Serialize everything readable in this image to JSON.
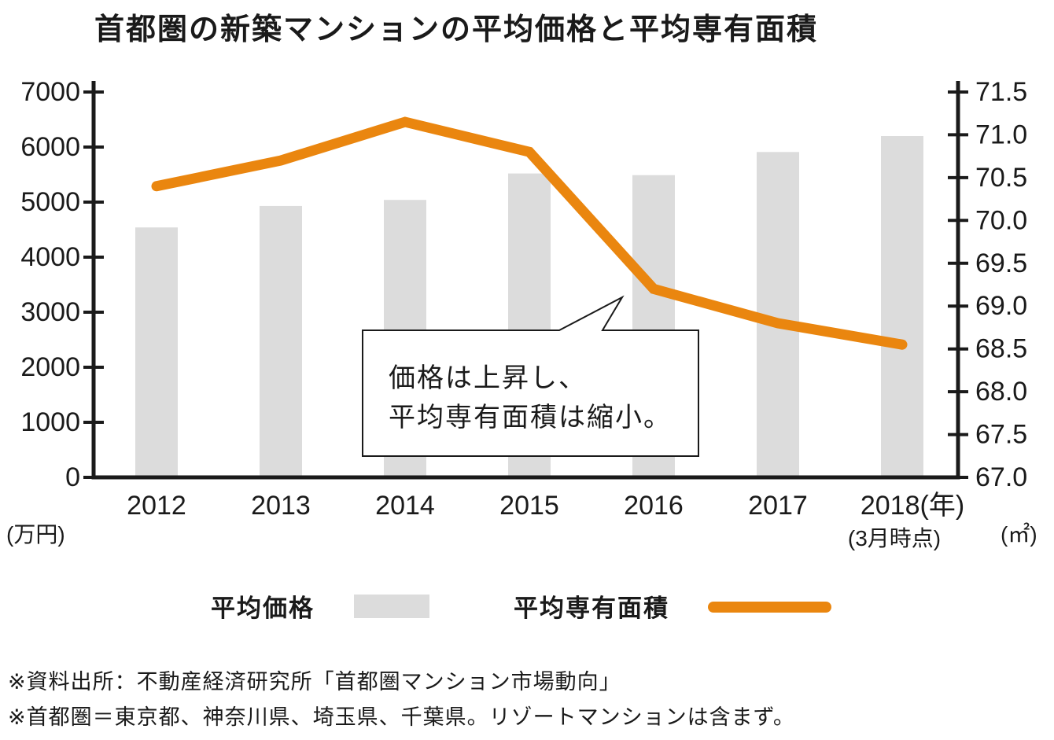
{
  "title": "首都圏の新築マンションの平均価格と平均専有面積",
  "chart_data": {
    "type": "bar",
    "subtype": "bar+line combo",
    "categories": [
      "2012",
      "2013",
      "2014",
      "2015",
      "2016",
      "2017",
      "2018"
    ],
    "series": [
      {
        "name": "平均価格",
        "type": "bar",
        "axis": "left",
        "unit": "万円",
        "color": "#dcdcdc",
        "values": [
          4540,
          4930,
          5040,
          5520,
          5490,
          5910,
          6200
        ]
      },
      {
        "name": "平均専有面積",
        "type": "line",
        "axis": "right",
        "unit": "㎡",
        "color": "#ea860f",
        "values": [
          70.4,
          70.7,
          71.15,
          70.8,
          69.2,
          68.8,
          68.55
        ]
      }
    ],
    "title": "首都圏の新築マンションの平均価格と平均専有面積",
    "left_axis": {
      "label": "(万円)",
      "min": 0,
      "max": 7000,
      "step": 1000,
      "ticks": [
        "7000",
        "6000",
        "5000",
        "4000",
        "3000",
        "2000",
        "1000",
        "0"
      ]
    },
    "right_axis": {
      "label": "(㎡)",
      "min": 67.0,
      "max": 71.5,
      "step": 0.5,
      "ticks": [
        "71.5",
        "71.0",
        "70.5",
        "70.0",
        "69.5",
        "69.0",
        "68.5",
        "68.0",
        "67.5",
        "67.0"
      ]
    },
    "x_axis": {
      "suffix": "(年)",
      "note": "(3月時点)",
      "note_year": "2018"
    },
    "annotation": {
      "lines": [
        "価格は上昇し、",
        "平均専有面積は縮小。"
      ]
    },
    "grid": false,
    "legend_position": "bottom"
  },
  "legend": {
    "items": [
      {
        "label": "平均価格",
        "swatch": "bar",
        "color": "#dcdcdc"
      },
      {
        "label": "平均専有面積",
        "swatch": "line",
        "color": "#ea860f"
      }
    ]
  },
  "footnotes": [
    "※資料出所：不動産経済研究所「首都圏マンション市場動向」",
    "※首都圏＝東京都、神奈川県、埼玉県、千葉県。リゾートマンションは含まず。"
  ],
  "colors": {
    "bar": "#dcdcdc",
    "line": "#ea860f",
    "text": "#1a1a1a",
    "axis": "#1a1a1a",
    "bubble_bg": "#ffffff",
    "bubble_border": "#1a1a1a",
    "background": "#ffffff"
  }
}
